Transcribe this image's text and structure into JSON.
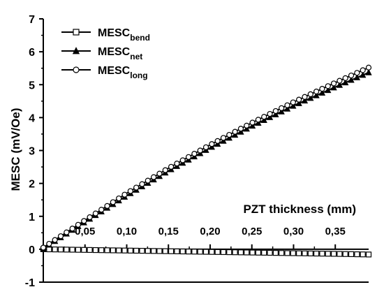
{
  "chart_data": {
    "type": "line",
    "xlabel": "PZT thickness (mm)",
    "ylabel": "MESC (mV/Oe)",
    "xlim": [
      0,
      0.39
    ],
    "ylim": [
      -1,
      7
    ],
    "x_ticks": [
      0.05,
      0.1,
      0.15,
      0.2,
      0.25,
      0.3,
      0.35
    ],
    "x_tick_labels": [
      "0,05",
      "0,10",
      "0,15",
      "0,20",
      "0,25",
      "0,30",
      "0,35"
    ],
    "y_ticks": [
      -1,
      0,
      1,
      2,
      3,
      4,
      5,
      6,
      7
    ],
    "y_tick_labels": [
      "-1",
      "0",
      "1",
      "2",
      "3",
      "4",
      "5",
      "6",
      "7"
    ],
    "legend_position": "top-left",
    "grid": false,
    "series": [
      {
        "name": "MESC",
        "name_sub": "bend",
        "marker": "square-open",
        "x": [
          0,
          0.05,
          0.1,
          0.15,
          0.2,
          0.25,
          0.3,
          0.35,
          0.39
        ],
        "y": [
          0,
          -0.02,
          -0.04,
          -0.06,
          -0.08,
          -0.1,
          -0.12,
          -0.14,
          -0.16
        ]
      },
      {
        "name": "MESC",
        "name_sub": "net",
        "marker": "triangle-filled",
        "x": [
          0,
          0.05,
          0.1,
          0.15,
          0.2,
          0.25,
          0.3,
          0.35,
          0.39
        ],
        "y": [
          0.02,
          0.83,
          1.63,
          2.38,
          3.08,
          3.74,
          4.36,
          4.93,
          5.37
        ]
      },
      {
        "name": "MESC",
        "name_sub": "long",
        "marker": "circle-open",
        "x": [
          0,
          0.05,
          0.1,
          0.15,
          0.2,
          0.25,
          0.3,
          0.35,
          0.39
        ],
        "y": [
          0.05,
          0.88,
          1.7,
          2.46,
          3.17,
          3.84,
          4.47,
          5.06,
          5.52
        ]
      }
    ]
  }
}
